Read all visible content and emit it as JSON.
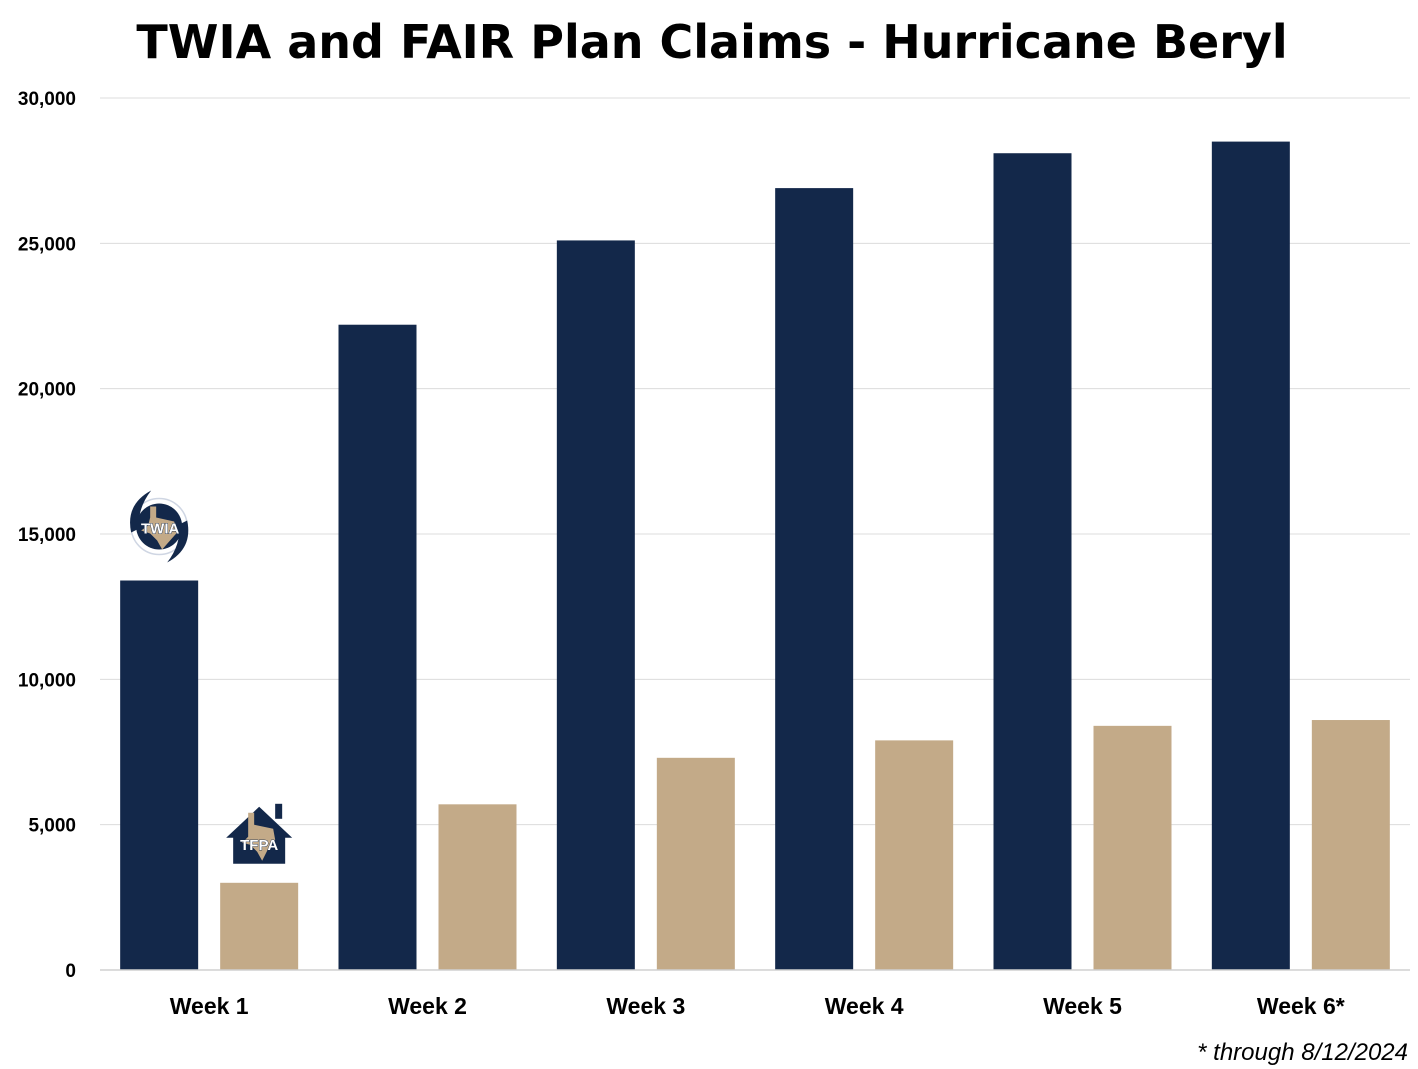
{
  "chart_data": {
    "type": "bar",
    "title": "TWIA and FAIR Plan Claims - Hurricane Beryl",
    "categories": [
      "Week 1",
      "Week 2",
      "Week 3",
      "Week 4",
      "Week 5",
      "Week 6*"
    ],
    "series": [
      {
        "name": "TWIA",
        "color": "#13284a",
        "values": [
          13400,
          22200,
          25100,
          26900,
          28100,
          28500
        ]
      },
      {
        "name": "TFPA",
        "color": "#c3aa88",
        "values": [
          3000,
          5700,
          7300,
          7900,
          8400,
          8600
        ]
      }
    ],
    "ylim": [
      0,
      30000
    ],
    "yticks": [
      "0",
      "5,000",
      "10,000",
      "15,000",
      "20,000",
      "25,000",
      "30,000"
    ],
    "ytick_values": [
      0,
      5000,
      10000,
      15000,
      20000,
      25000,
      30000
    ],
    "xlabel": "",
    "ylabel": "",
    "grid": true,
    "footnote": "* through 8/12/2024",
    "series_markers": [
      {
        "label": "TWIA",
        "icon": "hurricane-texas-logo-icon"
      },
      {
        "label": "TFPA",
        "icon": "house-texas-logo-icon"
      }
    ]
  }
}
